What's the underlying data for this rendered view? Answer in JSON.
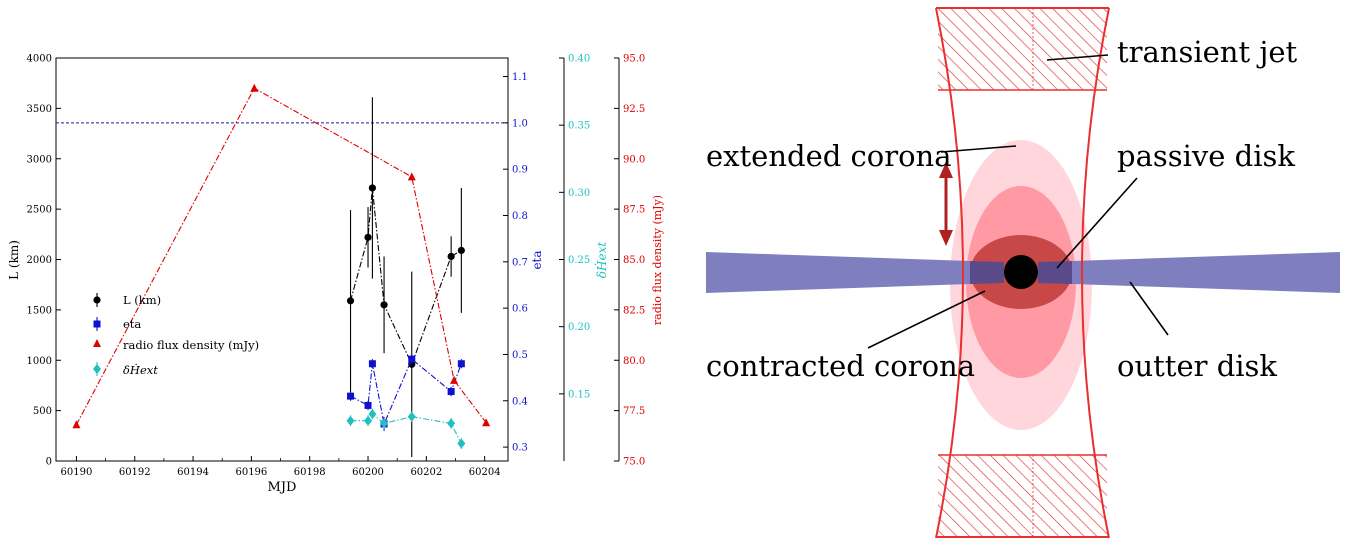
{
  "chart_data": [
    {
      "type": "line",
      "xlabel": "MJD",
      "xlim": [
        60189.3,
        60204.8
      ],
      "x_ticks": [
        "60190",
        "60192",
        "60194",
        "60196",
        "60198",
        "60200",
        "60202",
        "60204"
      ],
      "axes": {
        "L": {
          "label": "L (km)",
          "lim": [
            0,
            4000
          ],
          "ticks": [
            "0",
            "500",
            "1000",
            "1500",
            "2000",
            "2500",
            "3000",
            "3500",
            "4000"
          ]
        },
        "eta": {
          "label": "eta",
          "lim": [
            0.27,
            1.14
          ],
          "ticks": [
            "0.3",
            "0.4",
            "0.5",
            "0.6",
            "0.7",
            "0.8",
            "0.9",
            "1.0",
            "1.1"
          ]
        },
        "dH": {
          "label": "δḢext",
          "lim": [
            0.1,
            0.4
          ],
          "ticks": [
            "0.15",
            "0.20",
            "0.25",
            "0.30",
            "0.35",
            "0.40"
          ]
        },
        "radio": {
          "label": "radio flux density (mJy)",
          "lim": [
            75.0,
            95.0
          ],
          "ticks": [
            "75.0",
            "77.5",
            "80.0",
            "82.5",
            "85.0",
            "87.5",
            "90.0",
            "92.5",
            "95.0"
          ]
        }
      },
      "reference_line": {
        "axis": "eta",
        "value": 1.0,
        "color": "#1f1f9e"
      },
      "legend_position": "lower-left",
      "series": [
        {
          "name": "L (km)",
          "axis": "L",
          "color": "#000000",
          "marker": "circle",
          "style": "dashdot",
          "x": [
            60199.4,
            60200.0,
            60200.15,
            60200.55,
            60201.5,
            60202.85,
            60203.2
          ],
          "y": [
            1590,
            2220,
            2710,
            1550,
            960,
            2030,
            2090
          ],
          "err": [
            900,
            300,
            900,
            480,
            920,
            200,
            620
          ]
        },
        {
          "name": "eta",
          "axis": "eta",
          "color": "#1010d0",
          "marker": "square",
          "style": "dashdot",
          "x": [
            60199.4,
            60200.0,
            60200.15,
            60200.55,
            60201.5,
            60202.85,
            60203.2
          ],
          "y": [
            0.41,
            0.39,
            0.48,
            0.35,
            0.49,
            0.42,
            0.48
          ],
          "err": [
            0.01,
            0.01,
            0.01,
            0.015,
            0.01,
            0.01,
            0.01
          ]
        },
        {
          "name": "radio flux density (mJy)",
          "axis": "radio",
          "color": "#e00000",
          "marker": "triangle",
          "style": "dashdot",
          "x": [
            60190.0,
            60196.1,
            60201.5,
            60202.95,
            60204.05
          ],
          "y": [
            76.8,
            93.5,
            89.1,
            79.0,
            76.9
          ]
        },
        {
          "name": "δḢext",
          "axis": "dH",
          "color": "#20c0c0",
          "marker": "diamond",
          "style": "dashdot",
          "x": [
            60199.4,
            60200.0,
            60200.15,
            60200.55,
            60201.5,
            60202.85,
            60203.2
          ],
          "y": [
            0.13,
            0.13,
            0.135,
            0.128,
            0.133,
            0.128,
            0.113
          ],
          "err": [
            0.004,
            0.004,
            0.004,
            0.004,
            0.004,
            0.004,
            0.004
          ]
        }
      ]
    },
    {
      "type": "diagram",
      "labels": {
        "jet": "transient jet",
        "ext_corona": "extended corona",
        "passive": "passive disk",
        "contracted": "contracted corona",
        "outer": "outter disk"
      },
      "colors": {
        "jet": "#e83030",
        "disk": "#7f7fc0",
        "passive": "#5a4a8a",
        "extended": "#ffd6dc",
        "mid_corona": "#ff9aa4",
        "contracted": "#c84848",
        "arrow": "#b02020",
        "black_hole": "#000000"
      }
    }
  ]
}
